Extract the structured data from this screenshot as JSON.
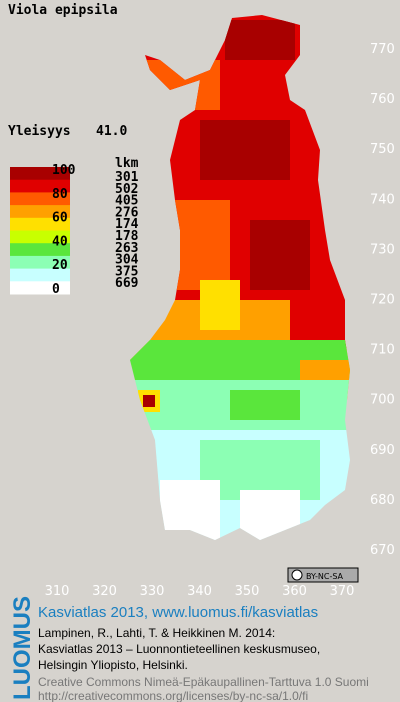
{
  "title": "Viola epipsila",
  "frequency": {
    "label": "Yleisyys",
    "value": "41.0"
  },
  "legend": {
    "scale_labels": [
      "100",
      "80",
      "60",
      "40",
      "20",
      "0"
    ],
    "count_header": "lkm",
    "counts": [
      "301",
      "502",
      "405",
      "276",
      "174",
      "178",
      "263",
      "304",
      "375",
      "669"
    ],
    "colors": [
      "#a80000",
      "#e00000",
      "#ff5a00",
      "#ffa000",
      "#ffe000",
      "#c8ff00",
      "#5ae63c",
      "#8cffb4",
      "#c8ffff",
      "#ffffff"
    ]
  },
  "axes": {
    "x_ticks": [
      "310",
      "320",
      "330",
      "340",
      "350",
      "360",
      "370"
    ],
    "y_ticks": [
      "770",
      "760",
      "750",
      "740",
      "730",
      "720",
      "710",
      "700",
      "690",
      "680",
      "670"
    ]
  },
  "license_badge": "BY-NC-SA",
  "footer": {
    "brand": "LUOMUS",
    "heading": "Kasviatlas 2013, www.luomus.fi/kasviatlas",
    "citation": [
      "Lampinen, R., Lahti, T. & Heikkinen M. 2014:",
      "Kasviatlas 2013 – Luonnontieteellinen keskusmuseo,",
      "Helsingin Yliopisto, Helsinki."
    ],
    "license": [
      "Creative Commons Nimeä-Epäkaupallinen-Tarttuva 1.0 Suomi",
      "http://creativecommons.org/licenses/by-nc-sa/1.0/fi"
    ]
  }
}
